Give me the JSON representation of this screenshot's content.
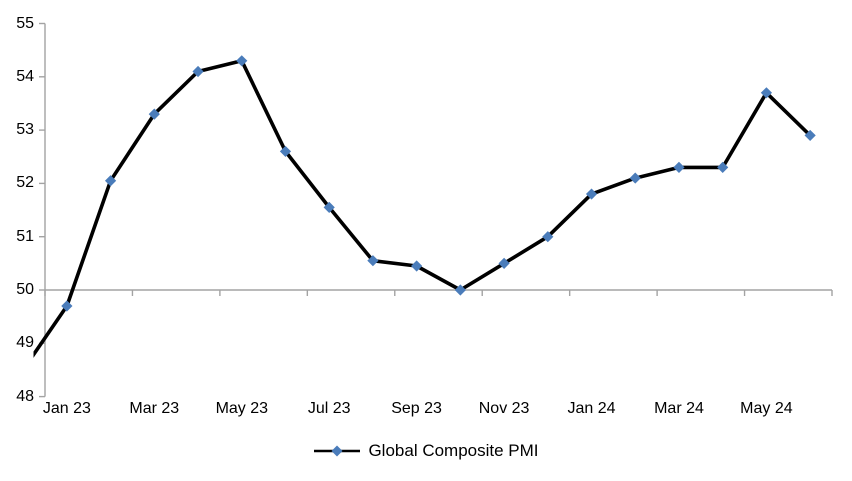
{
  "chart_data": {
    "type": "line",
    "title": "",
    "categories": [
      "Jan 23",
      "Feb 23",
      "Mar 23",
      "Apr 23",
      "May 23",
      "Jun 23",
      "Jul 23",
      "Aug 23",
      "Sep 23",
      "Oct 23",
      "Nov 23",
      "Dec 23",
      "Jan 24",
      "Feb 24",
      "Mar 24",
      "Apr 24",
      "May 24",
      "Jun 24"
    ],
    "series": [
      {
        "name": "Global Composite PMI",
        "values": [
          49.7,
          52.05,
          53.3,
          54.1,
          54.3,
          52.6,
          51.55,
          50.55,
          50.45,
          50.0,
          50.5,
          51.0,
          51.8,
          52.1,
          52.3,
          52.3,
          53.7,
          52.9
        ],
        "lead_in_clipped_value": 48.5,
        "line_color": "#000000",
        "marker": "diamond",
        "marker_color": "#4A7CBA"
      }
    ],
    "ylim": [
      48,
      55
    ],
    "y_tick_labels": [
      "55",
      "54",
      "53",
      "52",
      "51",
      "50",
      "49",
      "48"
    ],
    "x_tick_labels": [
      "Jan 23",
      "Mar 23",
      "May 23",
      "Jul 23",
      "Sep 23",
      "Nov 23",
      "Jan 24",
      "Mar 24",
      "May 24"
    ],
    "baseline_value": 50,
    "grid": "baseline-only",
    "axis_color": "#A3A3A3",
    "legend": {
      "label": "Global Composite PMI",
      "position": "bottom-center"
    }
  }
}
